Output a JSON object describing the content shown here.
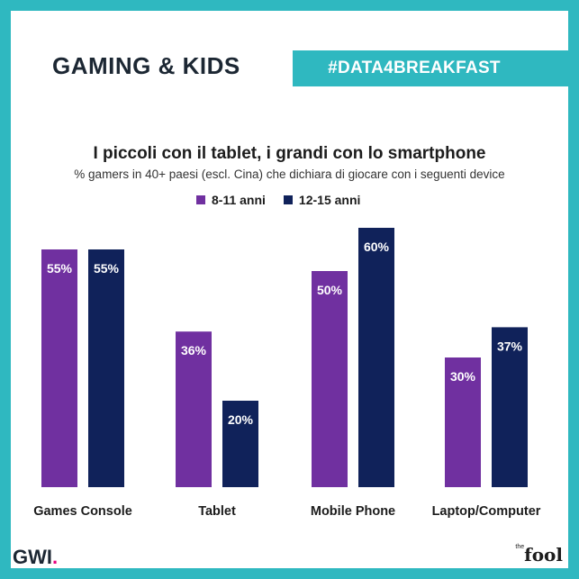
{
  "header": {
    "title": "GAMING & KIDS",
    "tag": "#DATA4BREAKFAST"
  },
  "footer": {
    "brand_left": "GWI",
    "brand_right_prefix": "the",
    "brand_right": "fool"
  },
  "colors": {
    "teal": "#2fb8c0",
    "purple": "#7030a0",
    "navy": "#10225a"
  },
  "chart_data": {
    "type": "bar",
    "title": "I piccoli con il tablet, i grandi con lo smartphone",
    "subtitle": "% gamers in 40+ paesi (escl. Cina) che dichiara di giocare con i seguenti device",
    "categories": [
      "Games Console",
      "Tablet",
      "Mobile Phone",
      "Laptop/Computer"
    ],
    "series": [
      {
        "name": "8-11 anni",
        "color": "#7030a0",
        "values": [
          55,
          36,
          50,
          30
        ]
      },
      {
        "name": "12-15 anni",
        "color": "#10225a",
        "values": [
          55,
          20,
          60,
          37
        ]
      }
    ],
    "value_suffix": "%",
    "ylim": [
      0,
      60
    ],
    "grid": false,
    "legend_position": "top-center"
  }
}
